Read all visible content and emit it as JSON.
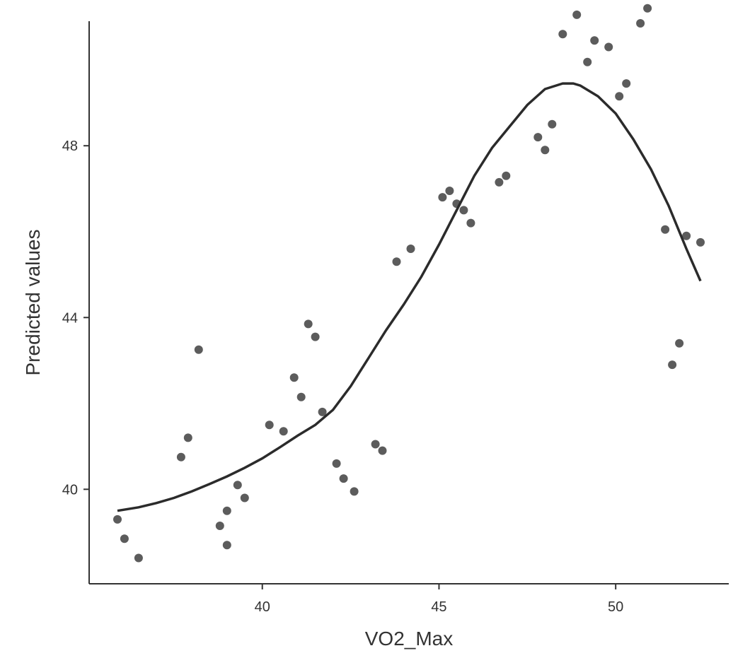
{
  "chart_data": {
    "type": "scatter",
    "title": "",
    "xlabel": "VO2_Max",
    "ylabel": "Predicted values",
    "xlim": [
      35.1,
      53.2
    ],
    "ylim": [
      37.8,
      50.9
    ],
    "xticks": [
      "40",
      "45",
      "50"
    ],
    "yticks": [
      "40",
      "44",
      "48"
    ],
    "grid": false,
    "colors": {
      "points": "#333333",
      "line": "#2b2b2b",
      "axis": "#333333"
    },
    "series": [
      {
        "name": "observed",
        "kind": "points",
        "x": [
          35.9,
          36.1,
          36.5,
          37.7,
          37.9,
          38.2,
          38.8,
          39.0,
          39.0,
          39.3,
          39.5,
          40.2,
          40.6,
          40.9,
          41.1,
          41.3,
          41.5,
          41.7,
          42.1,
          42.3,
          42.6,
          43.2,
          43.4,
          43.8,
          44.2,
          45.1,
          45.3,
          45.5,
          45.7,
          45.9,
          46.7,
          46.9,
          47.8,
          48.0,
          48.2,
          48.5,
          48.9,
          49.2,
          49.4,
          49.8,
          50.1,
          50.3,
          50.7,
          50.9,
          51.4,
          51.6,
          51.8,
          52.0,
          52.4
        ],
        "y": [
          39.3,
          38.85,
          38.4,
          40.75,
          41.2,
          43.25,
          39.15,
          39.5,
          38.7,
          40.1,
          39.8,
          41.5,
          41.35,
          42.6,
          42.15,
          43.85,
          43.55,
          41.8,
          40.6,
          40.25,
          39.95,
          41.05,
          40.9,
          45.3,
          45.6,
          46.8,
          46.95,
          46.65,
          46.5,
          46.2,
          47.15,
          47.3,
          48.2,
          47.9,
          48.5,
          50.6,
          51.05,
          49.95,
          50.45,
          50.3,
          49.15,
          49.45,
          50.85,
          51.2,
          46.05,
          42.9,
          43.4,
          45.9,
          45.75
        ]
      },
      {
        "name": "smooth fit",
        "kind": "line",
        "x": [
          35.9,
          36.5,
          37.0,
          37.5,
          38.0,
          38.5,
          39.0,
          39.5,
          40.0,
          40.5,
          41.0,
          41.5,
          42.0,
          42.5,
          43.0,
          43.5,
          44.0,
          44.5,
          45.0,
          45.5,
          46.0,
          46.5,
          47.0,
          47.5,
          48.0,
          48.5,
          48.8,
          49.0,
          49.5,
          50.0,
          50.5,
          51.0,
          51.5,
          52.0,
          52.4
        ],
        "y": [
          39.5,
          39.58,
          39.68,
          39.8,
          39.95,
          40.12,
          40.3,
          40.5,
          40.72,
          40.98,
          41.25,
          41.5,
          41.85,
          42.4,
          43.05,
          43.7,
          44.3,
          44.95,
          45.7,
          46.5,
          47.3,
          47.95,
          48.45,
          48.95,
          49.32,
          49.45,
          49.45,
          49.4,
          49.15,
          48.75,
          48.15,
          47.45,
          46.6,
          45.6,
          44.85
        ]
      }
    ]
  }
}
